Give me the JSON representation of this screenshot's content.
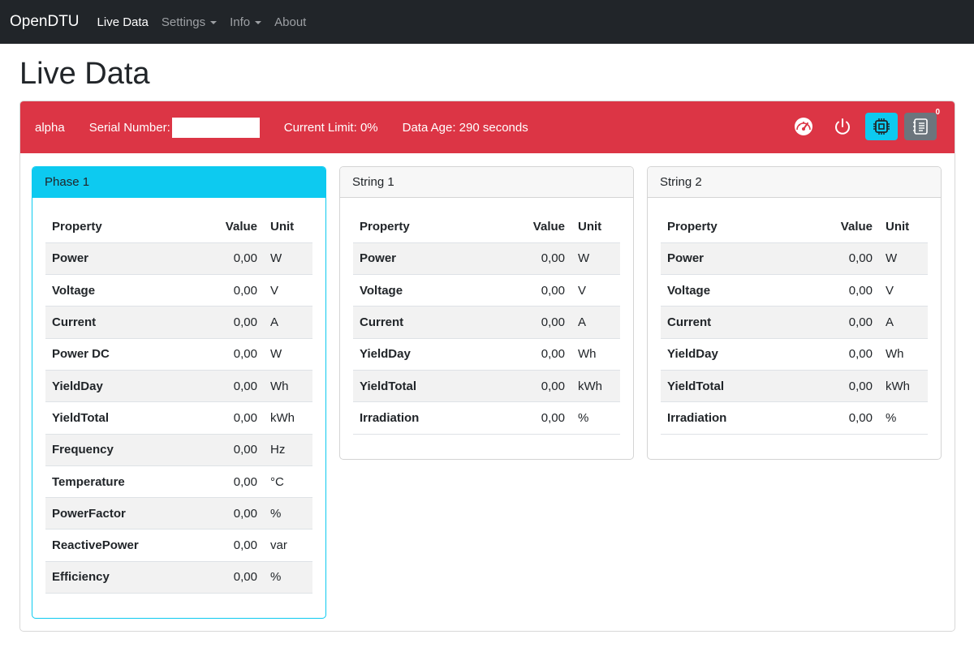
{
  "navbar": {
    "brand": "OpenDTU",
    "items": [
      {
        "label": "Live Data",
        "active": true,
        "dropdown": false
      },
      {
        "label": "Settings",
        "active": false,
        "dropdown": true
      },
      {
        "label": "Info",
        "active": false,
        "dropdown": true
      },
      {
        "label": "About",
        "active": false,
        "dropdown": false
      }
    ]
  },
  "page": {
    "title": "Live Data"
  },
  "inverter": {
    "name": "alpha",
    "serial_label": "Serial Number:",
    "current_limit": "Current Limit: 0%",
    "data_age": "Data Age: 290 seconds",
    "header_color": "#dc3545",
    "event_count": "0",
    "icons": [
      "speedometer-icon",
      "power-icon",
      "cpu-icon",
      "journal-icon"
    ]
  },
  "table_headers": {
    "property": "Property",
    "value": "Value",
    "unit": "Unit"
  },
  "cards": [
    {
      "title": "Phase 1",
      "rows": [
        {
          "property": "Power",
          "value": "0,00",
          "unit": "W"
        },
        {
          "property": "Voltage",
          "value": "0,00",
          "unit": "V"
        },
        {
          "property": "Current",
          "value": "0,00",
          "unit": "A"
        },
        {
          "property": "Power DC",
          "value": "0,00",
          "unit": "W"
        },
        {
          "property": "YieldDay",
          "value": "0,00",
          "unit": "Wh"
        },
        {
          "property": "YieldTotal",
          "value": "0,00",
          "unit": "kWh"
        },
        {
          "property": "Frequency",
          "value": "0,00",
          "unit": "Hz"
        },
        {
          "property": "Temperature",
          "value": "0,00",
          "unit": "°C"
        },
        {
          "property": "PowerFactor",
          "value": "0,00",
          "unit": "%"
        },
        {
          "property": "ReactivePower",
          "value": "0,00",
          "unit": "var"
        },
        {
          "property": "Efficiency",
          "value": "0,00",
          "unit": "%"
        }
      ]
    },
    {
      "title": "String 1",
      "rows": [
        {
          "property": "Power",
          "value": "0,00",
          "unit": "W"
        },
        {
          "property": "Voltage",
          "value": "0,00",
          "unit": "V"
        },
        {
          "property": "Current",
          "value": "0,00",
          "unit": "A"
        },
        {
          "property": "YieldDay",
          "value": "0,00",
          "unit": "Wh"
        },
        {
          "property": "YieldTotal",
          "value": "0,00",
          "unit": "kWh"
        },
        {
          "property": "Irradiation",
          "value": "0,00",
          "unit": "%"
        }
      ]
    },
    {
      "title": "String 2",
      "rows": [
        {
          "property": "Power",
          "value": "0,00",
          "unit": "W"
        },
        {
          "property": "Voltage",
          "value": "0,00",
          "unit": "V"
        },
        {
          "property": "Current",
          "value": "0,00",
          "unit": "A"
        },
        {
          "property": "YieldDay",
          "value": "0,00",
          "unit": "Wh"
        },
        {
          "property": "YieldTotal",
          "value": "0,00",
          "unit": "kWh"
        },
        {
          "property": "Irradiation",
          "value": "0,00",
          "unit": "%"
        }
      ]
    }
  ]
}
